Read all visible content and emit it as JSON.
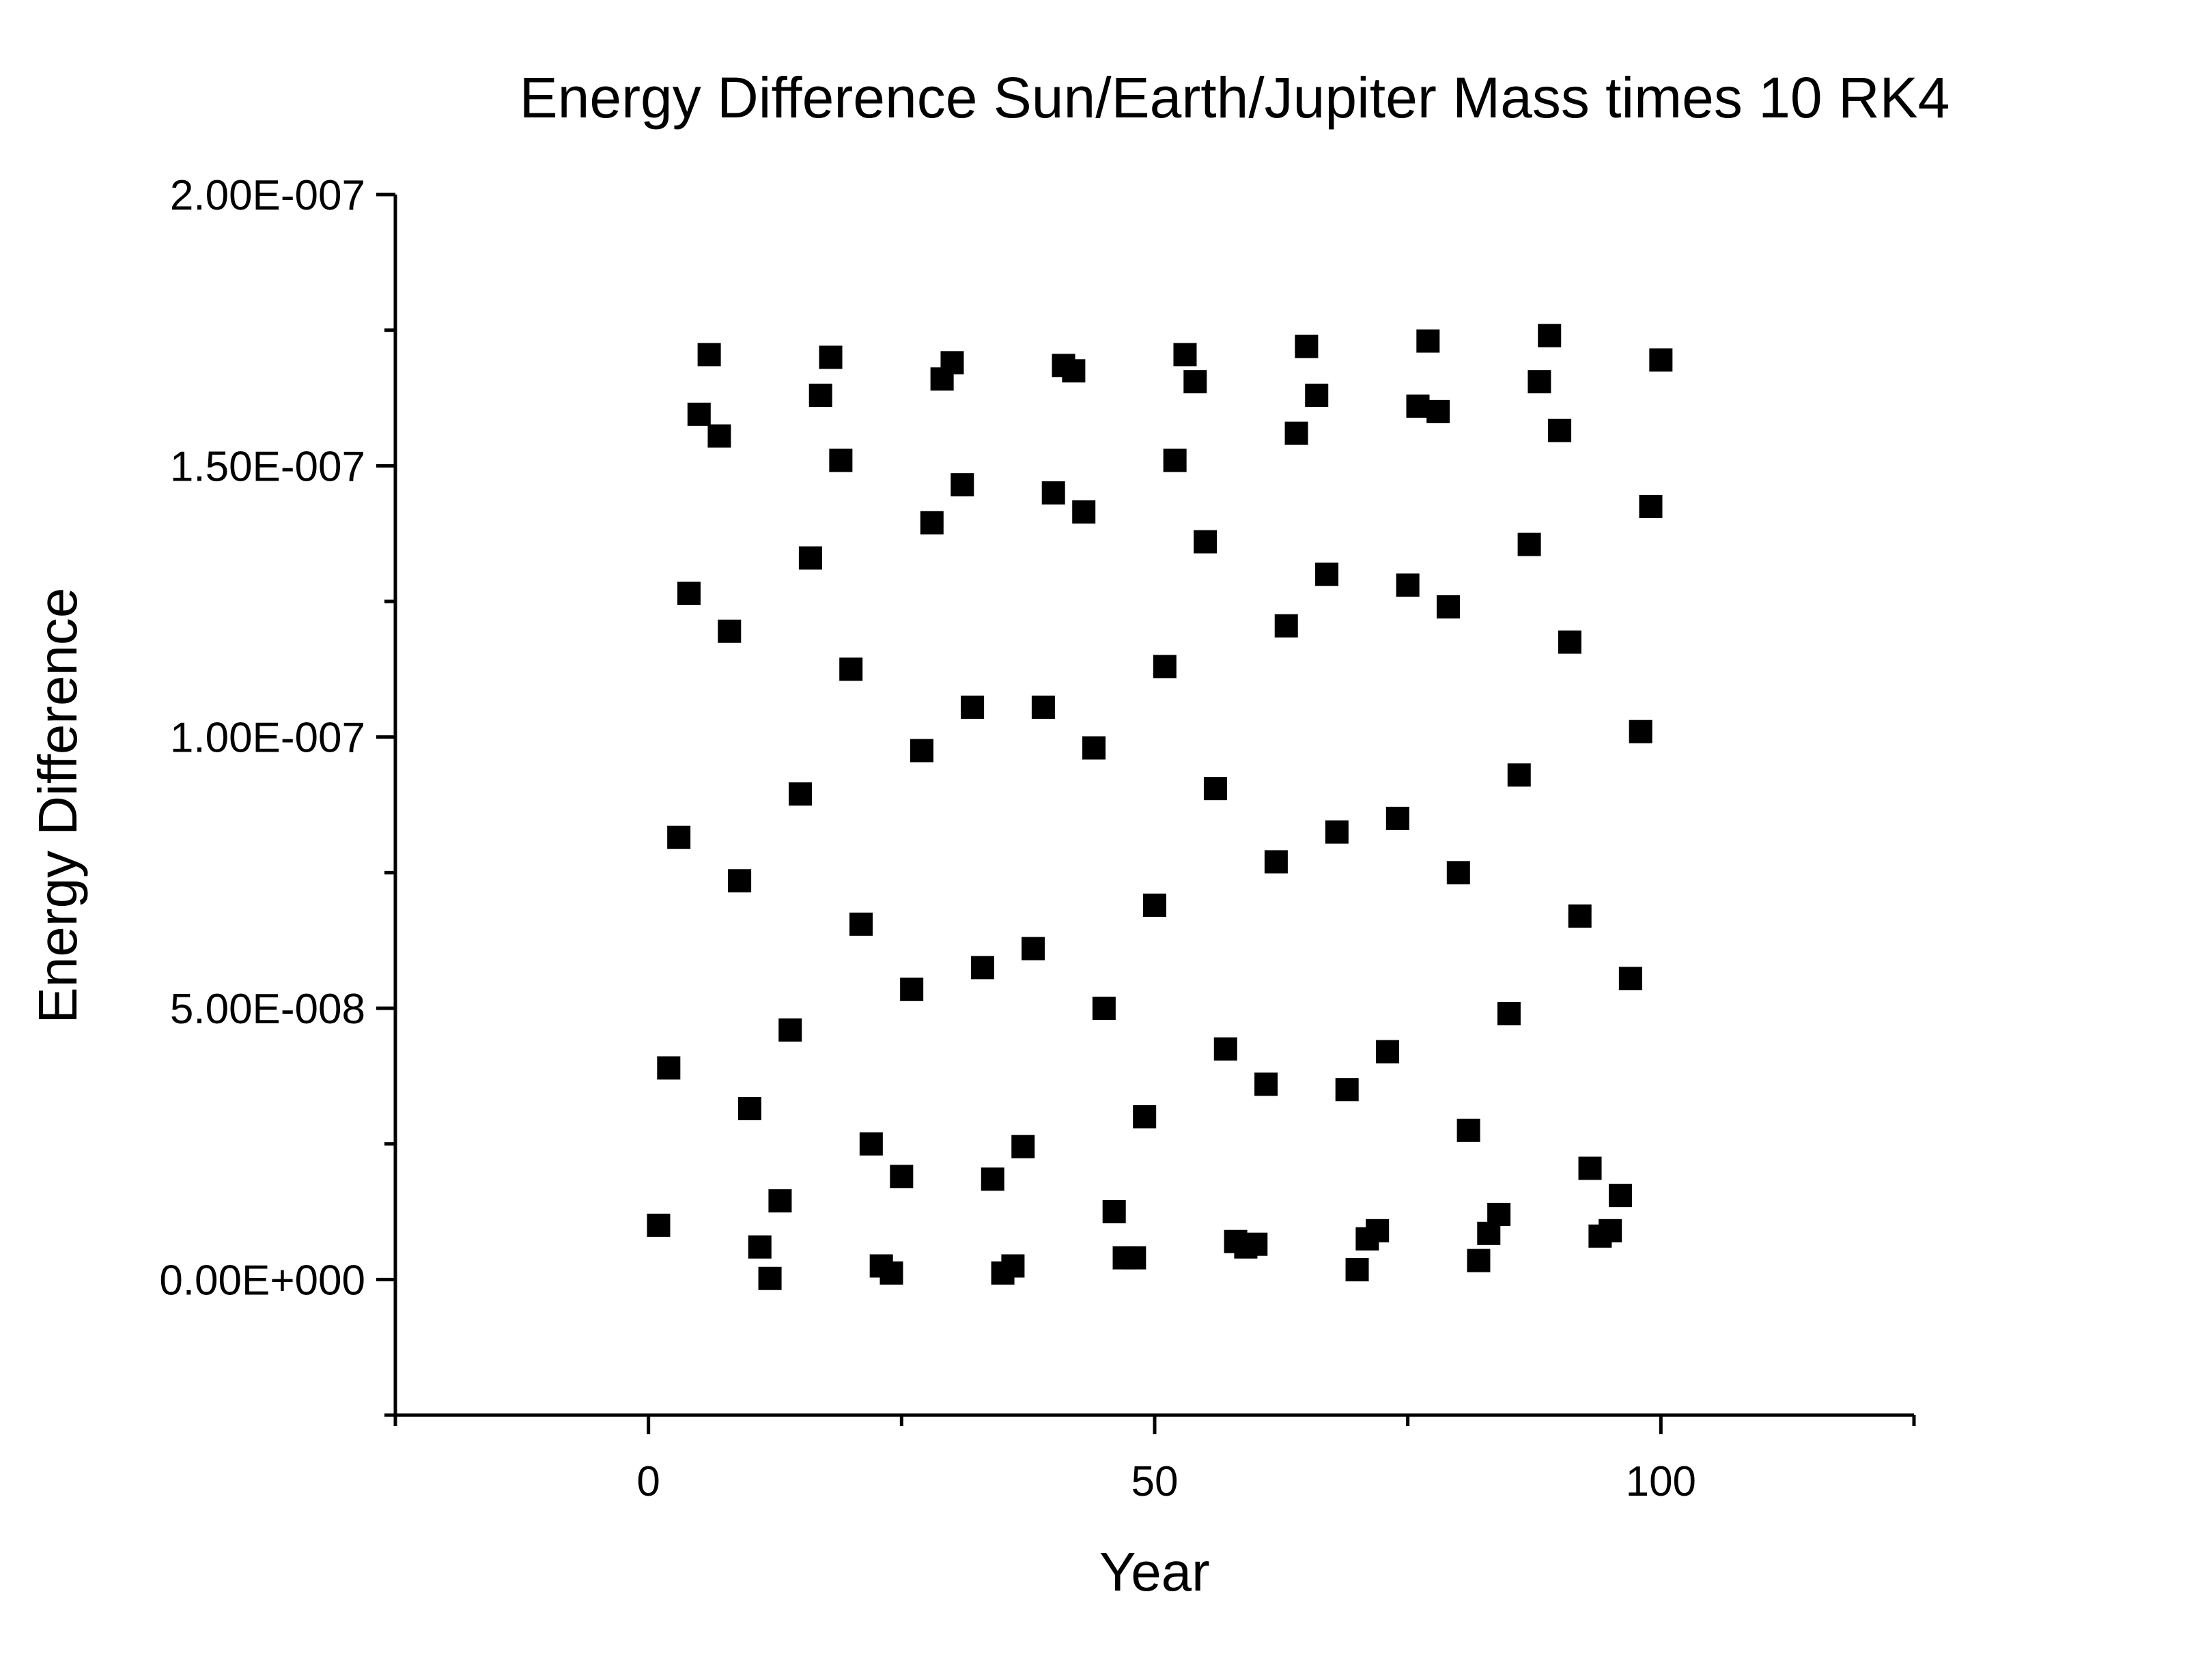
{
  "chart_data": {
    "type": "scatter",
    "title": "Energy Difference Sun/Earth/Jupiter Mass times 10 RK4",
    "xlabel": "Year",
    "ylabel": "Energy Difference",
    "xlim": [
      -25,
      125
    ],
    "ylim": [
      -2.5e-08,
      2e-07
    ],
    "x_ticks": [
      {
        "value": 0,
        "label": "0"
      },
      {
        "value": 50,
        "label": "50"
      },
      {
        "value": 100,
        "label": "100"
      }
    ],
    "x_minor_ticks": [
      -25,
      25,
      75,
      125
    ],
    "y_ticks": [
      {
        "value": 0,
        "label": "0.00E+000"
      },
      {
        "value": 5e-08,
        "label": "5.00E-008"
      },
      {
        "value": 1e-07,
        "label": "1.00E-007"
      },
      {
        "value": 1.5e-07,
        "label": "1.50E-007"
      },
      {
        "value": 2e-07,
        "label": "2.00E-007"
      }
    ],
    "y_minor_ticks": [
      -2.5e-08,
      2.5e-08,
      7.5e-08,
      1.25e-07,
      1.75e-07
    ],
    "grid": false,
    "marker": "square",
    "marker_color": "#000000",
    "series": [
      {
        "x": [
          1,
          2,
          3,
          4,
          5,
          6,
          7,
          8,
          9,
          10,
          11,
          12,
          13,
          14,
          15,
          16,
          17,
          18,
          19,
          20,
          21,
          22,
          23,
          24,
          25,
          26,
          27,
          28,
          29,
          30,
          31,
          32,
          33,
          34,
          35,
          36,
          37,
          38,
          39,
          40,
          41,
          42,
          43,
          44,
          45,
          46,
          47,
          48,
          49,
          50,
          51,
          52,
          53,
          54,
          55,
          56,
          57,
          58,
          59,
          60,
          61,
          62,
          63,
          64,
          65,
          66,
          67,
          68,
          69,
          70,
          71,
          72,
          73,
          74,
          75,
          76,
          77,
          78,
          79,
          80,
          81,
          82,
          83,
          84,
          85,
          86,
          87,
          88,
          89,
          90,
          91,
          92,
          93,
          94,
          95,
          96,
          97,
          98,
          99,
          100
        ],
        "y": [
          1e-08,
          3.9e-08,
          8.15e-08,
          1.265e-07,
          1.595e-07,
          1.705e-07,
          1.555e-07,
          1.195e-07,
          7.35e-08,
          3.15e-08,
          6e-09,
          2e-10,
          1.45e-08,
          4.6e-08,
          8.95e-08,
          1.33e-07,
          1.63e-07,
          1.7e-07,
          1.51e-07,
          1.125e-07,
          6.55e-08,
          2.5e-08,
          2.5e-09,
          1.2e-09,
          1.9e-08,
          5.35e-08,
          9.75e-08,
          1.395e-07,
          1.66e-07,
          1.69e-07,
          1.465e-07,
          1.055e-07,
          5.75e-08,
          1.85e-08,
          1.2e-09,
          2.5e-09,
          2.45e-08,
          6.1e-08,
          1.055e-07,
          1.45e-07,
          1.685e-07,
          1.675e-07,
          1.415e-07,
          9.8e-08,
          5e-08,
          1.25e-08,
          4e-09,
          4e-09,
          3e-08,
          6.9e-08,
          1.13e-07,
          1.51e-07,
          1.705e-07,
          1.655e-07,
          1.36e-07,
          9.05e-08,
          4.25e-08,
          7e-09,
          6e-09,
          6.5e-09,
          3.6e-08,
          7.7e-08,
          1.205e-07,
          1.56e-07,
          1.72e-07,
          1.63e-07,
          1.3e-07,
          8.25e-08,
          3.5e-08,
          1.8e-09,
          7.5e-09,
          9e-09,
          4.2e-08,
          8.5e-08,
          1.28e-07,
          1.61e-07,
          1.73e-07,
          1.6e-07,
          1.24e-07,
          7.5e-08,
          2.75e-08,
          3.5e-09,
          8.5e-09,
          1.2e-08,
          4.9e-08,
          9.3e-08,
          1.355e-07,
          1.655e-07,
          1.74e-07,
          1.565e-07,
          1.175e-07,
          6.7e-08,
          2.05e-08,
          8e-09,
          9e-09,
          1.55e-08,
          5.55e-08,
          1.01e-07,
          1.425e-07,
          1.695e-07
        ]
      }
    ]
  }
}
